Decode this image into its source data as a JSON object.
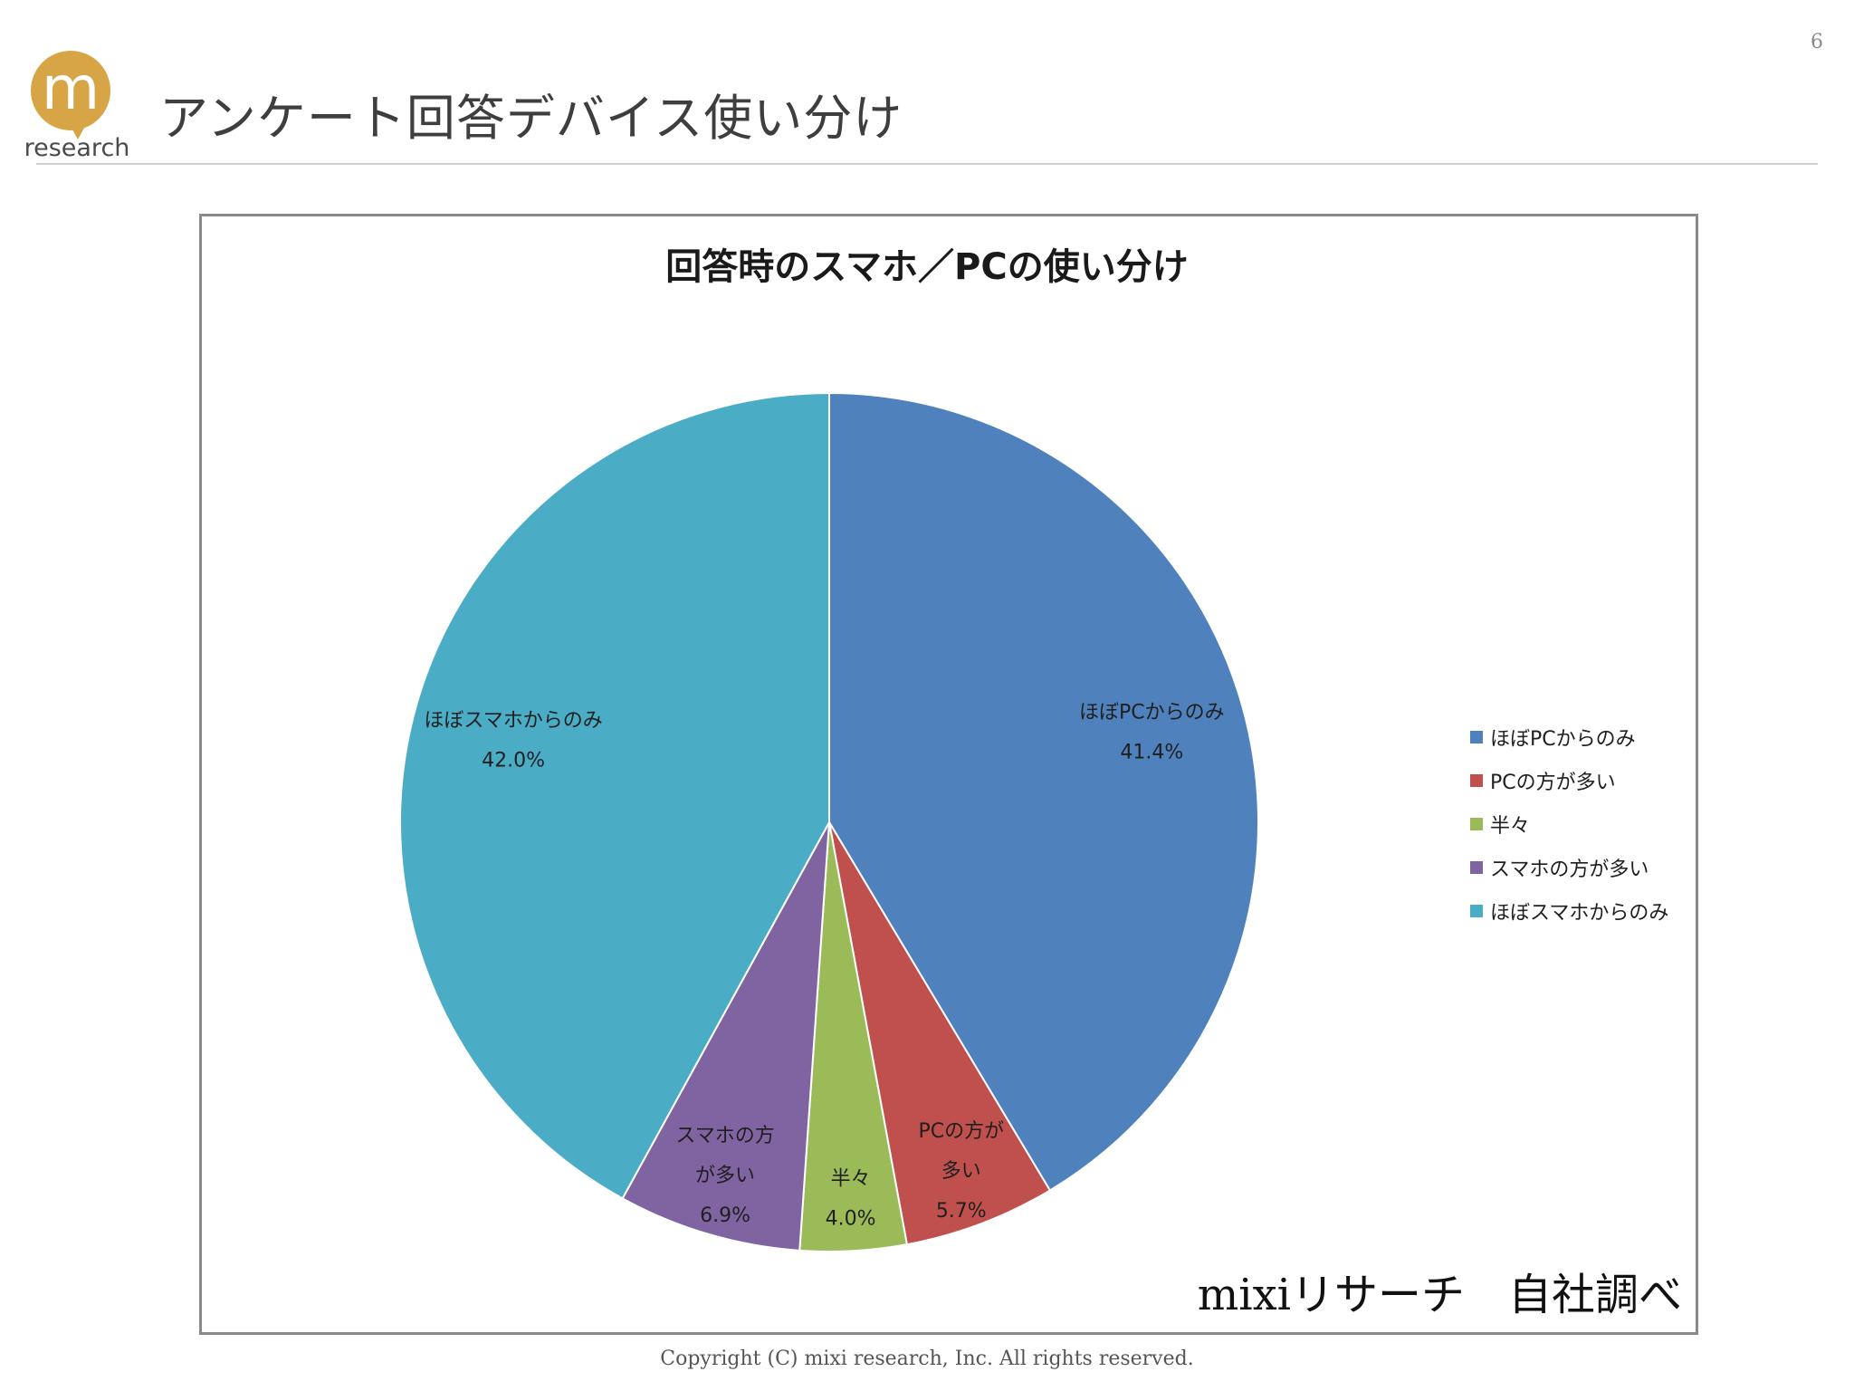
{
  "header": {
    "logo_letter": "m",
    "logo_text": "research",
    "title": "アンケート回答デバイス使い分け",
    "page_number": "6"
  },
  "source_note": "mixiリサーチ　自社調べ",
  "footer": {
    "copyright": "Copyright (C) mixi research, Inc. All rights reserved."
  },
  "chart_data": {
    "type": "pie",
    "title": "回答時のスマホ／PCの使い分け",
    "legend_position": "right",
    "slices": [
      {
        "name": "ほぼPCからのみ",
        "label_lines": [
          "ほぼPCからのみ"
        ],
        "value": 41.4,
        "value_label": "41.4%",
        "color": "#4f81bd"
      },
      {
        "name": "PCの方が多い",
        "label_lines": [
          "PCの方が",
          "多い"
        ],
        "value": 5.7,
        "value_label": "5.7%",
        "color": "#c0504d"
      },
      {
        "name": "半々",
        "label_lines": [
          "半々"
        ],
        "value": 4.0,
        "value_label": "4.0%",
        "color": "#9bbb59"
      },
      {
        "name": "スマホの方が多い",
        "label_lines": [
          "スマホの方",
          "が多い"
        ],
        "value": 6.9,
        "value_label": "6.9%",
        "color": "#8064a2"
      },
      {
        "name": "ほぼスマホからのみ",
        "label_lines": [
          "ほぼスマホからのみ"
        ],
        "value": 42.0,
        "value_label": "42.0%",
        "color": "#4bacc6"
      }
    ]
  }
}
